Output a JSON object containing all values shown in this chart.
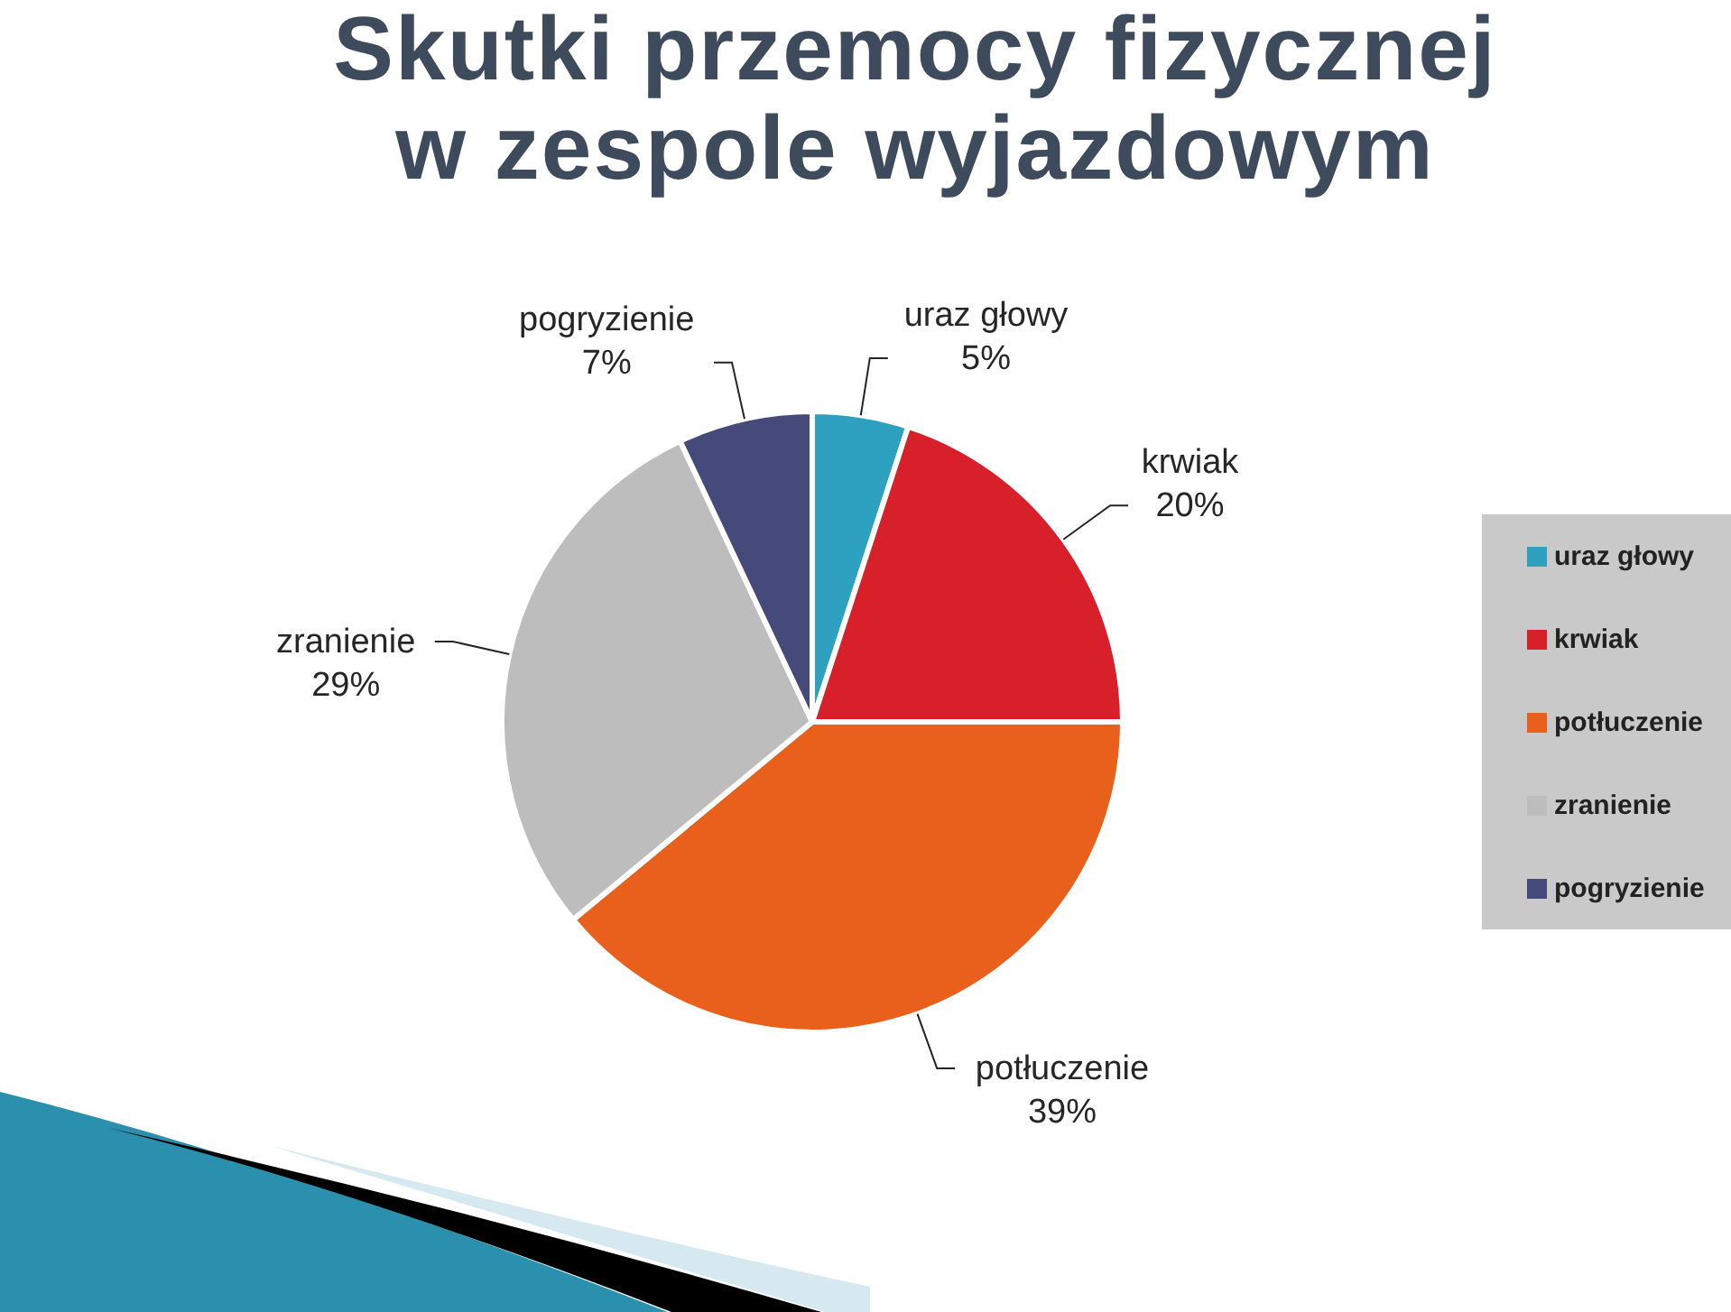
{
  "chart_data": {
    "type": "pie",
    "title": "Skutki przemocy fizycznej w zespole wyjazdowym",
    "categories": [
      "uraz głowy",
      "krwiak",
      "potłuczenie",
      "zranienie",
      "pogryzienie"
    ],
    "values": [
      5,
      20,
      39,
      29,
      7
    ],
    "value_labels": [
      "5%",
      "20%",
      "39%",
      "29%",
      "7%"
    ],
    "colors": [
      "#2ea1c1",
      "#d7202a",
      "#e8601c",
      "#bdbdbd",
      "#454a7b"
    ],
    "legend": "right"
  }
}
